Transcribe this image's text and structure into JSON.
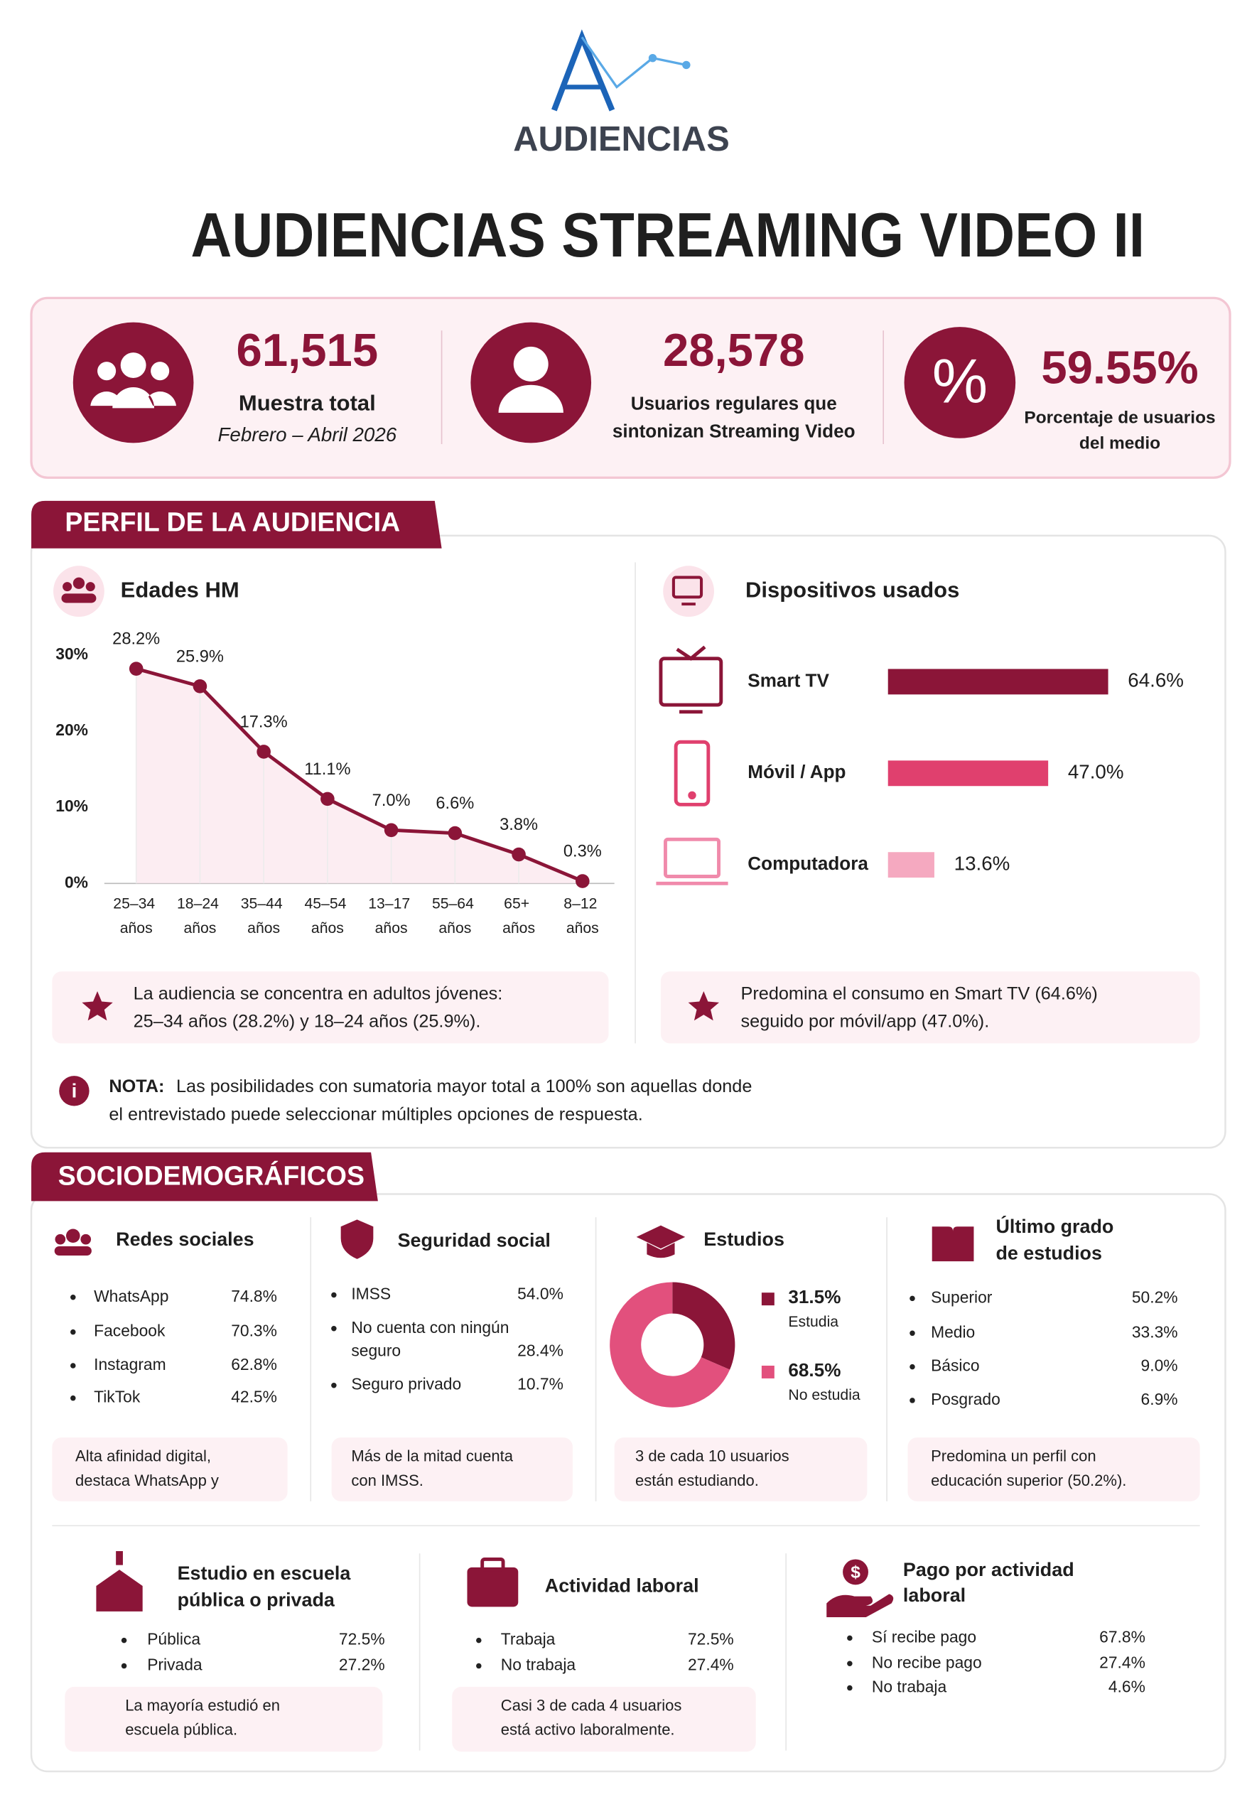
{
  "header": {
    "brand": "AUDIENCIAS",
    "title": "AUDIENCIAS STREAMING VIDEO II"
  },
  "kpis": [
    {
      "value": "61,515",
      "label": [
        "Muestra total"
      ],
      "sub": "Febrero – Abril 2026"
    },
    {
      "value": "28,578",
      "label": [
        "Usuarios regulares que",
        "sintonizan Streaming Video"
      ]
    },
    {
      "value": "59.55%",
      "label": [
        "Porcentaje de usuarios",
        "del medio"
      ]
    }
  ],
  "profile": {
    "heading": "PERFIL DE LA AUDIENCIA",
    "notes": [
      [
        "La audiencia se concentra en adultos jóvenes:",
        "25–34 años (28.2%) y 18–24 años (25.9%)."
      ],
      [
        "Predomina el consumo en Smart TV (64.6%)",
        "seguido por móvil/app (47.0%)."
      ]
    ],
    "nota": {
      "label": "NOTA:",
      "text": [
        "Las posibilidades con sumatoria mayor total a 100% son aquellas donde",
        "el entrevistado puede seleccionar múltiples opciones de respuesta."
      ]
    }
  },
  "chart_data": [
    {
      "type": "line",
      "title": "Edades HM",
      "categories": [
        "25–34 años",
        "18–24 años",
        "35–44 años",
        "45–54 años",
        "13–17 años",
        "55–64 años",
        "65+ años",
        "8–12 años"
      ],
      "values": [
        28.2,
        25.9,
        17.3,
        11.1,
        7.0,
        6.6,
        3.8,
        0.3
      ],
      "value_labels": [
        "28.2%",
        "25.9%",
        "17.3%",
        "11.1%",
        "7.0%",
        "6.6%",
        "3.8%",
        "0.3%"
      ],
      "color": "#8b1538",
      "ylim": [
        0,
        30
      ],
      "yticks": [
        {
          "value": 0,
          "label": "0%"
        },
        {
          "value": 10,
          "label": "10%"
        },
        {
          "value": 20,
          "label": "20%"
        },
        {
          "value": 30,
          "label": "30%"
        }
      ],
      "grid": false
    },
    {
      "type": "hbar",
      "title": "Dispositivos usados",
      "categories": [
        "Smart TV",
        "Móvil / App",
        "Computadora"
      ],
      "values": [
        64.6,
        47.0,
        13.6
      ],
      "value_labels": [
        "64.6%",
        "47.0%",
        "13.6%"
      ],
      "colors": [
        "#8b1538",
        "#e0406e",
        "#f5a9c0"
      ],
      "xlim": [
        0,
        100
      ]
    },
    {
      "type": "donut",
      "title": "Estudios",
      "categories": [
        "Estudia",
        "No estudia"
      ],
      "values": [
        31.5,
        68.5
      ],
      "value_labels": [
        "31.5%",
        "68.5%"
      ],
      "colors": [
        "#8b1538",
        "#e2507d"
      ]
    }
  ],
  "socio": {
    "heading": "SOCIODEMOGRÁFICOS",
    "cards": [
      {
        "title": [
          "Redes sociales"
        ],
        "items": [
          {
            "label": [
              "WhatsApp"
            ],
            "value": "74.8%"
          },
          {
            "label": [
              "Facebook"
            ],
            "value": "70.3%"
          },
          {
            "label": [
              "Instagram"
            ],
            "value": "62.8%"
          },
          {
            "label": [
              "TikTok"
            ],
            "value": "42.5%"
          }
        ],
        "note": [
          "Alta afinidad digital,",
          "destaca WhatsApp y"
        ]
      },
      {
        "title": [
          "Seguridad social"
        ],
        "items": [
          {
            "label": [
              "IMSS"
            ],
            "value": "54.0%"
          },
          {
            "label": [
              "No cuenta con ningún",
              "seguro"
            ],
            "value": "28.4%"
          },
          {
            "label": [
              "Seguro privado"
            ],
            "value": "10.7%"
          }
        ],
        "note": [
          "Más de la mitad cuenta",
          "con IMSS."
        ]
      },
      {
        "title": [
          "Estudios"
        ],
        "items": [],
        "note": [
          "3 de cada 10 usuarios",
          "están estudiando."
        ]
      },
      {
        "title": [
          "Último grado",
          "de estudios"
        ],
        "items": [
          {
            "label": [
              "Superior"
            ],
            "value": "50.2%"
          },
          {
            "label": [
              "Medio"
            ],
            "value": "33.3%"
          },
          {
            "label": [
              "Básico"
            ],
            "value": "9.0%"
          },
          {
            "label": [
              "Posgrado"
            ],
            "value": "6.9%"
          }
        ],
        "note": [
          "Predomina un perfil con",
          "educación superior (50.2%)."
        ]
      },
      {
        "title": [
          "Estudio en escuela",
          "pública o privada"
        ],
        "items": [
          {
            "label": [
              "Pública"
            ],
            "value": "72.5%"
          },
          {
            "label": [
              "Privada"
            ],
            "value": "27.2%"
          }
        ],
        "note": [
          "La mayoría estudió en",
          "escuela pública."
        ]
      },
      {
        "title": [
          "Actividad laboral"
        ],
        "items": [
          {
            "label": [
              "Trabaja"
            ],
            "value": "72.5%"
          },
          {
            "label": [
              "No trabaja"
            ],
            "value": "27.4%"
          }
        ],
        "note": [
          "Casi 3 de cada 4 usuarios",
          "está activo laboralmente."
        ]
      },
      {
        "title": [
          "Pago por actividad",
          "laboral"
        ],
        "items": [
          {
            "label": [
              "Sí recibe pago"
            ],
            "value": "67.8%"
          },
          {
            "label": [
              "No recibe pago"
            ],
            "value": "27.4%"
          },
          {
            "label": [
              "No trabaja"
            ],
            "value": "4.6%"
          }
        ]
      }
    ]
  }
}
